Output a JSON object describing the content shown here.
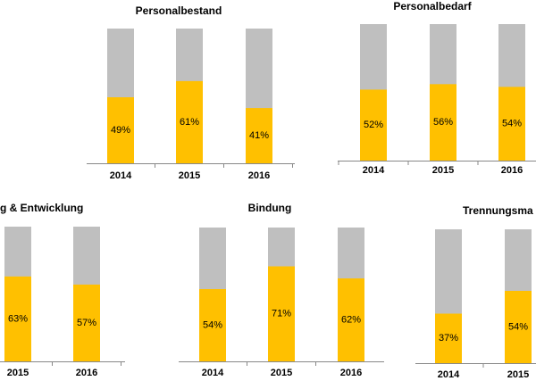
{
  "chart_data": [
    {
      "type": "bar",
      "title": "Personalbestand",
      "categories": [
        "2014",
        "2015",
        "2016"
      ],
      "values": [
        49,
        61,
        41
      ],
      "value_labels": [
        "49%",
        "61%",
        "41%"
      ],
      "ylim": [
        0,
        100
      ],
      "color": "#ffc000",
      "track_color": "#bfbfbf"
    },
    {
      "type": "bar",
      "title": "Personalbedarf",
      "categories": [
        "2014",
        "2015",
        "2016"
      ],
      "values": [
        52,
        56,
        54
      ],
      "value_labels": [
        "52%",
        "56%",
        "54%"
      ],
      "ylim": [
        0,
        100
      ],
      "color": "#ffc000",
      "track_color": "#bfbfbf"
    },
    {
      "type": "bar",
      "title": "g & Entwicklung",
      "categories": [
        "2015",
        "2016"
      ],
      "values": [
        63,
        57
      ],
      "value_labels": [
        "63%",
        "57%"
      ],
      "ylim": [
        0,
        100
      ],
      "color": "#ffc000",
      "track_color": "#bfbfbf"
    },
    {
      "type": "bar",
      "title": "Bindung",
      "categories": [
        "2014",
        "2015",
        "2016"
      ],
      "values": [
        54,
        71,
        62
      ],
      "value_labels": [
        "54%",
        "71%",
        "62%"
      ],
      "ylim": [
        0,
        100
      ],
      "color": "#ffc000",
      "track_color": "#bfbfbf"
    },
    {
      "type": "bar",
      "title": "Trennungsma",
      "categories": [
        "2014",
        "2015"
      ],
      "values": [
        37,
        54
      ],
      "value_labels": [
        "37%",
        "54%"
      ],
      "ylim": [
        0,
        100
      ],
      "color": "#ffc000",
      "track_color": "#bfbfbf"
    }
  ]
}
